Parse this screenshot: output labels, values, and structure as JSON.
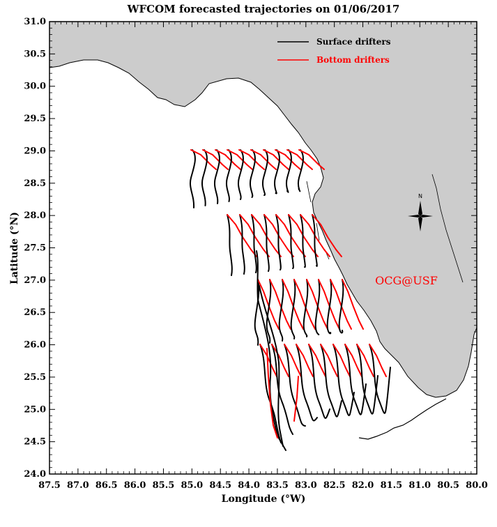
{
  "chart_data": {
    "type": "map",
    "title": "WFCOM forecasted trajectories on 01/06/2017",
    "xlabel": "Longitude (°W)",
    "ylabel": "Latitude (°N)",
    "xlim": [
      87.5,
      80.0
    ],
    "ylim": [
      24.0,
      31.0
    ],
    "x_ticks": [
      "87.5",
      "87.0",
      "86.5",
      "86.0",
      "85.5",
      "85.0",
      "84.5",
      "84.0",
      "83.5",
      "83.0",
      "82.5",
      "82.0",
      "81.5",
      "81.0",
      "80.5",
      "80.0"
    ],
    "y_ticks": [
      "31.0",
      "30.5",
      "30.0",
      "29.5",
      "29.0",
      "28.5",
      "28.0",
      "27.5",
      "27.0",
      "26.5",
      "26.0",
      "25.5",
      "25.0",
      "24.5",
      "24.0"
    ],
    "legend": [
      {
        "name": "Surface drifters",
        "color": "#000000"
      },
      {
        "name": "Bottom drifters",
        "color": "#ff0000"
      }
    ],
    "land_color": "#cccccc",
    "compass_label": "N",
    "watermark": "OCG@USF",
    "watermark_color": "#ff0000",
    "release_rows_lat": [
      29.0,
      28.0,
      27.0,
      26.0
    ]
  }
}
